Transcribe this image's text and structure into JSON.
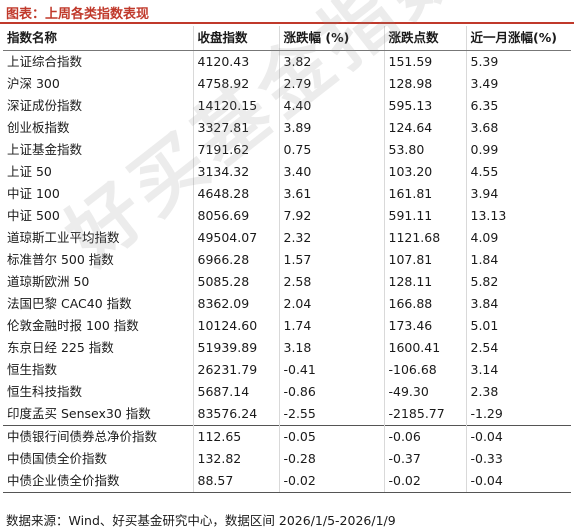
{
  "title": "图表：上周各类指数表现",
  "columns": [
    "指数名称",
    "收盘指数",
    "涨跌幅 (%)",
    "涨跌点数",
    "近一月涨幅(%)"
  ],
  "rows": [
    [
      "上证综合指数",
      "4120.43",
      "3.82",
      "151.59",
      "5.39"
    ],
    [
      "沪深 300",
      "4758.92",
      "2.79",
      "128.98",
      "3.49"
    ],
    [
      "深证成份指数",
      "14120.15",
      "4.40",
      "595.13",
      "6.35"
    ],
    [
      "创业板指数",
      "3327.81",
      "3.89",
      "124.64",
      "3.68"
    ],
    [
      "上证基金指数",
      "7191.62",
      "0.75",
      "53.80",
      "0.99"
    ],
    [
      "上证 50",
      "3134.32",
      "3.40",
      "103.20",
      "4.55"
    ],
    [
      "中证 100",
      "4648.28",
      "3.61",
      "161.81",
      "3.94"
    ],
    [
      "中证 500",
      "8056.69",
      "7.92",
      "591.11",
      "13.13"
    ],
    [
      "道琼斯工业平均指数",
      "49504.07",
      "2.32",
      "1121.68",
      "4.09"
    ],
    [
      "标准普尔 500 指数",
      "6966.28",
      "1.57",
      "107.81",
      "1.84"
    ],
    [
      "道琼斯欧洲 50",
      "5085.28",
      "2.58",
      "128.11",
      "5.82"
    ],
    [
      "法国巴黎 CAC40 指数",
      "8362.09",
      "2.04",
      "166.88",
      "3.84"
    ],
    [
      "伦敦金融时报 100 指数",
      "10124.60",
      "1.74",
      "173.46",
      "5.01"
    ],
    [
      "东京日经 225 指数",
      "51939.89",
      "3.18",
      "1600.41",
      "2.54"
    ],
    [
      "恒生指数",
      "26231.79",
      "-0.41",
      "-106.68",
      "3.14"
    ],
    [
      "恒生科技指数",
      "5687.14",
      "-0.86",
      "-49.30",
      "2.38"
    ],
    [
      "印度孟买 Sensex30 指数",
      "83576.24",
      "-2.55",
      "-2185.77",
      "-1.29"
    ],
    [
      "中债银行间债券总净价指数",
      "112.65",
      "-0.05",
      "-0.06",
      "-0.04"
    ],
    [
      "中债国债全价指数",
      "132.82",
      "-0.28",
      "-0.37",
      "-0.33"
    ],
    [
      "中债企业债全价指数",
      "88.57",
      "-0.02",
      "-0.02",
      "-0.04"
    ]
  ],
  "source": "数据来源：Wind、好买基金研究中心，数据区间 2026/1/5-2026/1/9",
  "watermark": "好买基金指数",
  "colors": {
    "accent": "#c0392b"
  }
}
